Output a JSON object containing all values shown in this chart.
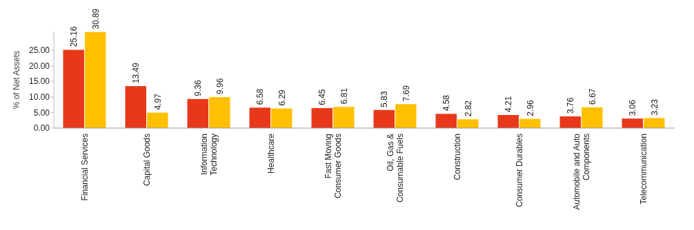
{
  "chart_data": {
    "type": "bar",
    "ylabel": "% of Net Assets",
    "categories": [
      "Financial Services",
      "Capital Goods",
      "Information Technology",
      "Healthcare",
      "Fast Moving Consumer Goods",
      "Oil, Gas & Consumable Fuels",
      "Construction",
      "Consumer Durables",
      "Automobile and Auto Components",
      "Telecommunication"
    ],
    "series": [
      {
        "color": "#e8381b",
        "values": [
          25.16,
          13.49,
          9.36,
          6.58,
          6.45,
          5.83,
          4.58,
          4.21,
          3.76,
          3.06
        ]
      },
      {
        "color": "#ffc000",
        "values": [
          30.89,
          4.97,
          9.96,
          6.29,
          6.81,
          7.69,
          2.82,
          2.96,
          6.67,
          3.23
        ]
      }
    ],
    "ylim": [
      0,
      31
    ],
    "yticks": [
      {
        "value": 0,
        "label": "0.00"
      },
      {
        "value": 5,
        "label": "5.00"
      },
      {
        "value": 10,
        "label": "10.00"
      },
      {
        "value": 15,
        "label": "15.00"
      },
      {
        "value": 20,
        "label": "20.00"
      },
      {
        "value": 25,
        "label": "25.00"
      }
    ],
    "data_labels": true
  }
}
